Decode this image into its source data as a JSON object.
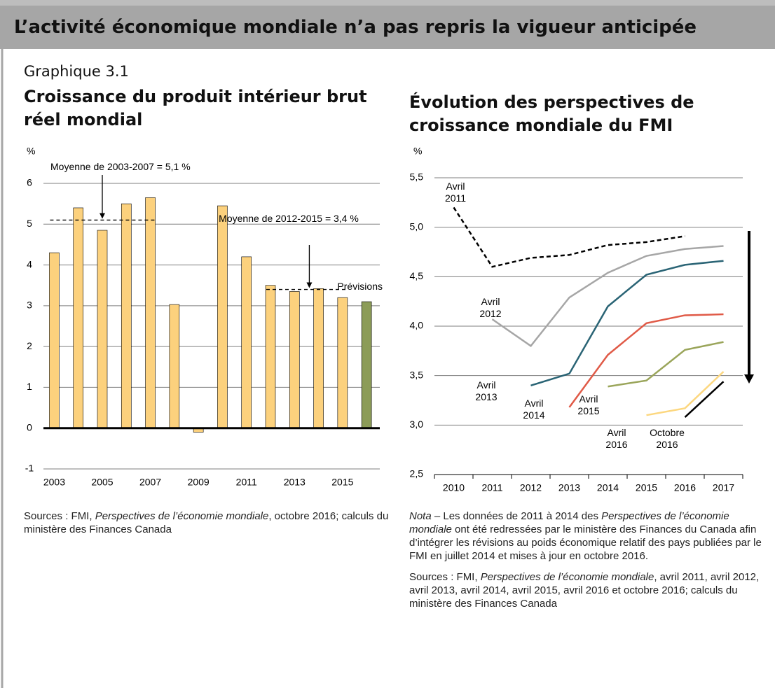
{
  "header": {
    "title": "L’activité économique mondiale n’a pas repris la vigueur anticipée"
  },
  "figure_label": "Graphique 3.1",
  "chart_data": [
    {
      "type": "bar",
      "title": "Croissance du produit intérieur brut réel mondial",
      "y_label": "%",
      "x": [
        2003,
        2004,
        2005,
        2006,
        2007,
        2008,
        2009,
        2010,
        2011,
        2012,
        2013,
        2014,
        2015,
        2016
      ],
      "values": [
        4.3,
        5.4,
        4.85,
        5.5,
        5.65,
        3.03,
        -0.1,
        5.45,
        4.2,
        3.5,
        3.35,
        3.42,
        3.2,
        3.1
      ],
      "colors": [
        "#fcd17d",
        "#fcd17d",
        "#fcd17d",
        "#fcd17d",
        "#fcd17d",
        "#fcd17d",
        "#fcd17d",
        "#fcd17d",
        "#fcd17d",
        "#fcd17d",
        "#fcd17d",
        "#fcd17d",
        "#fcd17d",
        "#8c9c58"
      ],
      "xlim": [
        2002.55,
        2016.55
      ],
      "xticks": [
        2003,
        2005,
        2007,
        2009,
        2011,
        2013,
        2015
      ],
      "ylim": [
        -1,
        6
      ],
      "yticks": [
        -1,
        0,
        1,
        2,
        3,
        4,
        5,
        6
      ],
      "grid": true,
      "annotations": [
        {
          "label": "Moyenne de 2003-2007 = 5,1 %",
          "value": 5.1,
          "x_range": [
            2003,
            2007
          ]
        },
        {
          "label": "Moyenne de 2012-2015 = 3,4 %",
          "value": 3.4,
          "x_range": [
            2012,
            2015
          ]
        }
      ],
      "forecast_label": "Prévisions"
    },
    {
      "type": "line",
      "title": "Évolution des perspectives de croissance mondiale du FMI",
      "y_label": "%",
      "x": [
        2010,
        2011,
        2012,
        2013,
        2014,
        2015,
        2016,
        2017
      ],
      "series": [
        {
          "name": "Avril 2011",
          "color": "#000000",
          "dashed": true,
          "values": [
            5.2,
            4.6,
            4.69,
            4.72,
            4.82,
            4.85,
            4.91,
            null
          ]
        },
        {
          "name": "Avril 2012",
          "color": "#a6a6a6",
          "values": [
            null,
            4.07,
            3.8,
            4.29,
            4.54,
            4.71,
            4.78,
            4.81
          ]
        },
        {
          "name": "Avril 2013",
          "color": "#2a6475",
          "values": [
            null,
            null,
            3.4,
            3.52,
            4.2,
            4.52,
            4.62,
            4.66
          ]
        },
        {
          "name": "Avril 2014",
          "color": "#e05a47",
          "values": [
            null,
            null,
            null,
            3.18,
            3.71,
            4.03,
            4.11,
            4.12
          ]
        },
        {
          "name": "Avril 2015",
          "color": "#9aa55a",
          "values": [
            null,
            null,
            null,
            null,
            3.39,
            3.45,
            3.76,
            3.84
          ]
        },
        {
          "name": "Avril 2016",
          "color": "#fcd77f",
          "values": [
            null,
            null,
            null,
            null,
            null,
            3.1,
            3.17,
            3.54
          ]
        },
        {
          "name": "Octobre 2016",
          "color": "#000000",
          "values": [
            null,
            null,
            null,
            null,
            null,
            null,
            3.08,
            3.44
          ]
        }
      ],
      "xlim": [
        2009.5,
        2017.5
      ],
      "xticks": [
        2010,
        2011,
        2012,
        2013,
        2014,
        2015,
        2016,
        2017
      ],
      "ylim": [
        2.5,
        5.5
      ],
      "yticks": [
        {
          "value": 2.5,
          "label": "2,5"
        },
        {
          "value": 3.0,
          "label": "3,0"
        },
        {
          "value": 3.5,
          "label": "3,5"
        },
        {
          "value": 4.0,
          "label": "4,0"
        },
        {
          "value": 4.5,
          "label": "4,5"
        },
        {
          "value": 5.0,
          "label": "5,0"
        },
        {
          "value": 5.5,
          "label": "5,5"
        }
      ],
      "grid": true
    }
  ],
  "notes": {
    "left_sources": [
      {
        "text": "Sources : FMI, "
      },
      {
        "text": "Perspectives de l’économie mondiale",
        "italic": true
      },
      {
        "text": ", octobre 2016; calculs du ministère des Finances Canada"
      }
    ],
    "right_note": [
      {
        "text": "Nota",
        "italic": true
      },
      {
        "text": " – Les données de 2011 à 2014 des "
      },
      {
        "text": "Perspectives de l’économie mondiale",
        "italic": true
      },
      {
        "text": " ont été redressées par le ministère des Finances du Canada afin d’intégrer les révisions au poids économique relatif des pays publiées par le FMI en juillet 2014 et mises à jour en octobre 2016."
      }
    ],
    "right_sources": [
      {
        "text": "Sources : FMI, "
      },
      {
        "text": "Perspectives de l’économie mondiale",
        "italic": true
      },
      {
        "text": ", avril 2011, avril 2012, avril 2013, avril 2014, avril 2015, avril 2016 et octobre 2016; calculs du ministère des Finances Canada"
      }
    ]
  }
}
